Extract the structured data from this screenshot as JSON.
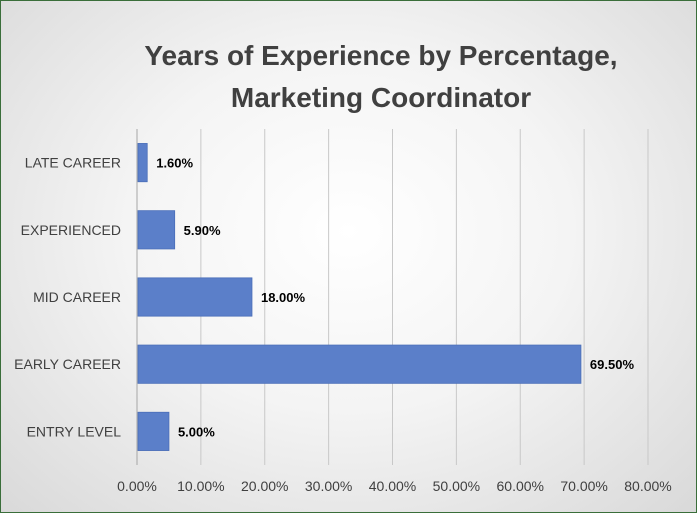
{
  "chart_data": {
    "type": "bar",
    "orientation": "horizontal",
    "title_lines": [
      "Years of Experience by Percentage,",
      "Marketing Coordinator"
    ],
    "categories": [
      "LATE CAREER",
      "EXPERIENCED",
      "MID CAREER",
      "EARLY CAREER",
      "ENTRY LEVEL"
    ],
    "values": [
      1.6,
      5.9,
      18.0,
      69.5,
      5.0
    ],
    "value_labels": [
      "1.60%",
      "5.90%",
      "18.00%",
      "69.50%",
      "5.00%"
    ],
    "xlim": [
      0,
      80
    ],
    "x_ticks": [
      0,
      10,
      20,
      30,
      40,
      50,
      60,
      70,
      80
    ],
    "x_tick_labels": [
      "0.00%",
      "10.00%",
      "20.00%",
      "30.00%",
      "40.00%",
      "50.00%",
      "60.00%",
      "70.00%",
      "80.00%"
    ],
    "grid": true,
    "bar_color": "#5b7fc9"
  }
}
